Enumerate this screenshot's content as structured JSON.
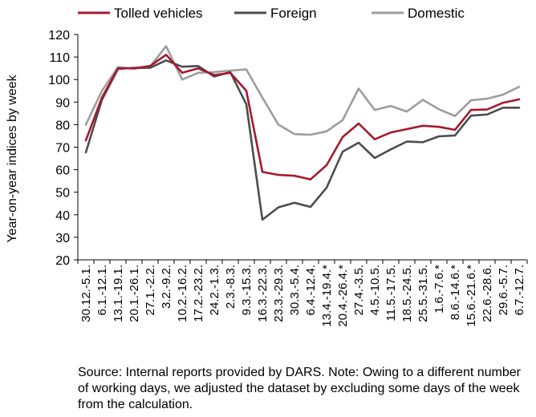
{
  "chart_data": {
    "type": "line",
    "ylabel": "Year-on-year indices by week",
    "ylim": [
      20,
      120
    ],
    "yticks": [
      20,
      30,
      40,
      50,
      60,
      70,
      80,
      90,
      100,
      110,
      120
    ],
    "grid": false,
    "legend_position": "top",
    "categories": [
      "30.12.-5.1.",
      "6.1.-12.1.",
      "13.1.-19.1.",
      "20.1.-26.1.",
      "27.1.-2.2.",
      "3.2.-9.2.",
      "10.2.-16.2.",
      "17.2.-23.2.",
      "24.2.-1.3.",
      "2.3.-8.3.",
      "9.3.-15.3.",
      "16.3.-22.3.",
      "23.3.-29.3.",
      "30.3.-5.4.",
      "6.4.-12.4.",
      "13.4.-19.4.*",
      "20.4.-26.4.*",
      "27.4.-3.5.",
      "4.5.-10.5.",
      "11.5.-17.5.",
      "18.5.-24.5.",
      "25.5.-31.5.",
      "1.6.-7.6.*",
      "8.6.-14.6.*",
      "15.6.-21.6.*",
      "22.6.-28.6.",
      "29.6.-5.7.",
      "6.7.-12.7."
    ],
    "series": [
      {
        "name": "Tolled vehicles",
        "color": "#a6192e",
        "values": [
          73,
          92,
          105,
          105,
          106,
          111,
          103,
          105,
          102,
          103,
          95,
          59,
          57.7,
          57.3,
          55.7,
          62,
          74.5,
          80.5,
          73.5,
          76.5,
          78,
          79.5,
          79,
          77.7,
          86.5,
          86.7,
          89.7,
          91.2
        ]
      },
      {
        "name": "Foreign",
        "color": "#4d4d4f",
        "values": [
          67.7,
          91,
          104.7,
          105.2,
          105.2,
          108.5,
          105.7,
          106,
          101.3,
          103.3,
          89,
          37.8,
          43.3,
          45.3,
          43.5,
          52,
          68,
          72,
          65.2,
          69,
          72.5,
          72.2,
          74.8,
          75.2,
          84,
          84.5,
          87.5,
          87.5
        ]
      },
      {
        "name": "Domestic",
        "color": "#9d9d9c",
        "values": [
          80,
          95,
          105.5,
          104.8,
          105.7,
          114.8,
          100,
          103,
          103.3,
          104,
          104.5,
          92,
          80,
          75.8,
          75.5,
          77,
          82,
          96,
          86.5,
          88.3,
          85.8,
          91,
          86.8,
          83.8,
          90.8,
          91.5,
          93.3,
          96.8
        ]
      }
    ]
  },
  "note": "Source: Internal reports provided by DARS. Note: Owing to a different number of working days, we adjusted the dataset by excluding some days of the week from the calculation."
}
